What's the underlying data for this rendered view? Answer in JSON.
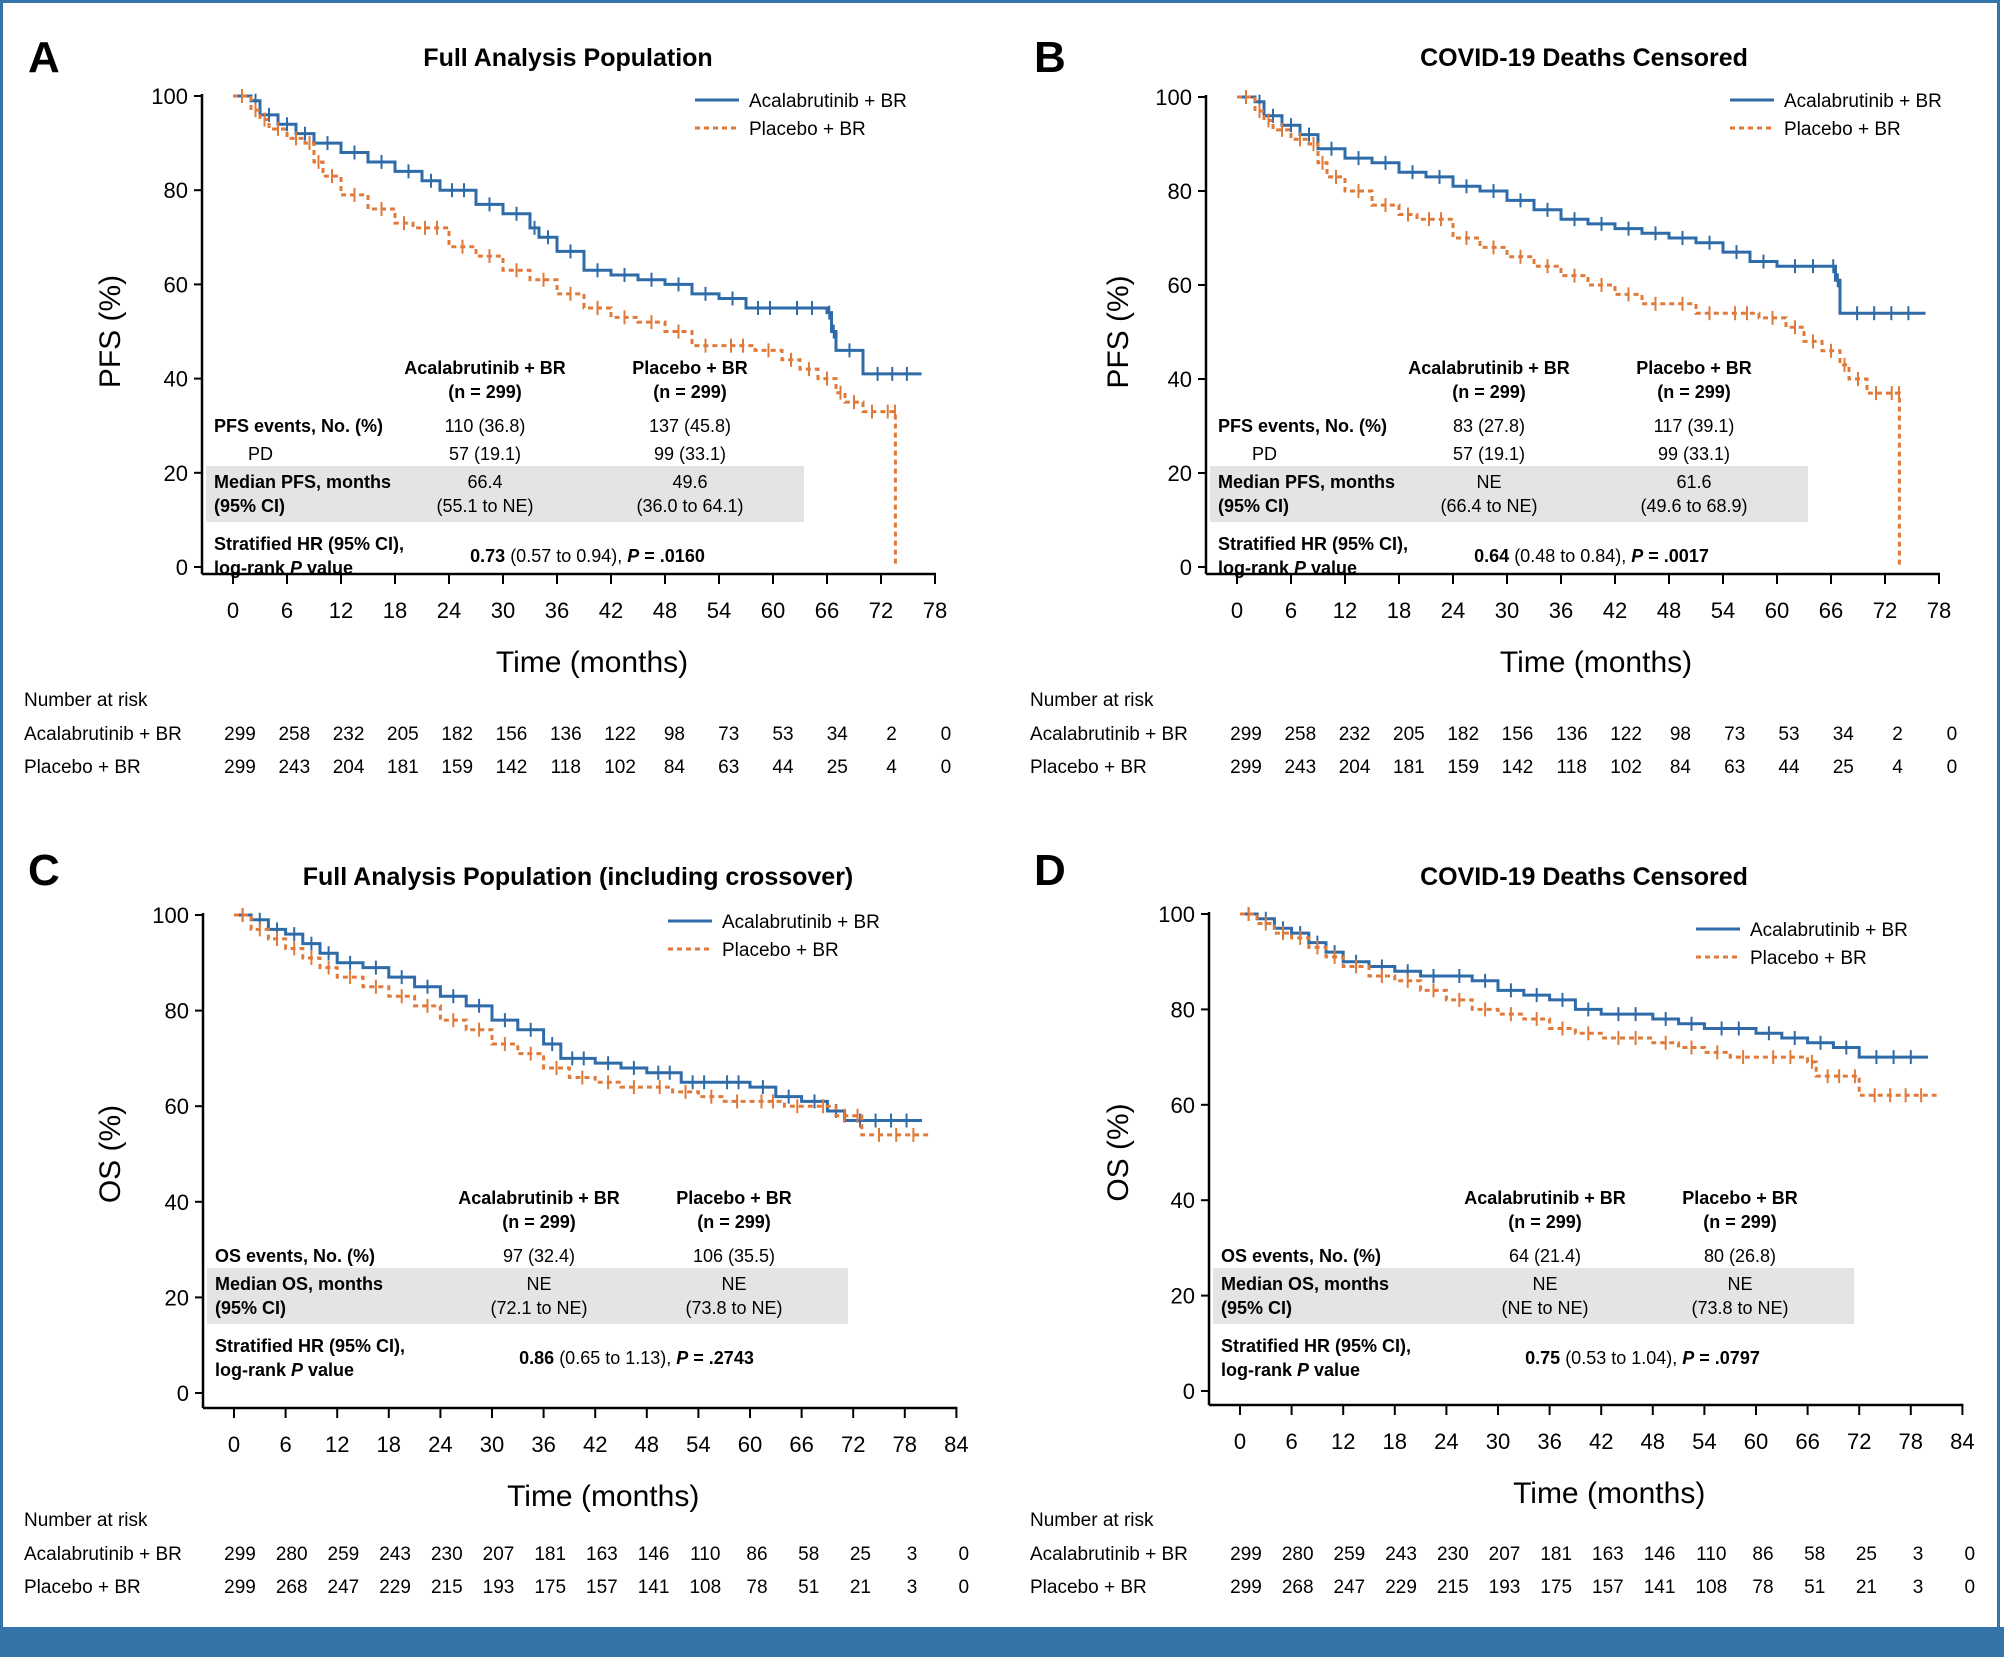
{
  "colors": {
    "acalabrutinib": "#2E6BA8",
    "placebo": "#E07A3A",
    "table_shade": "#E4E4E4",
    "banner": "#3574A9"
  },
  "chart_data": [
    {
      "panel": "A",
      "type": "line",
      "title": "Full Analysis Population",
      "xlabel": "Time (months)",
      "ylabel": "PFS (%)",
      "xlim": [
        0,
        78
      ],
      "ylim": [
        0,
        100
      ],
      "xticks": [
        0,
        6,
        12,
        18,
        24,
        30,
        36,
        42,
        48,
        54,
        60,
        66,
        72,
        78
      ],
      "yticks": [
        0,
        20,
        40,
        60,
        80,
        100
      ],
      "legend": "top-right",
      "series": [
        {
          "name": "Acalabrutinib + BR",
          "style": "solid",
          "x": [
            0,
            2,
            3,
            5,
            7,
            9,
            12,
            15,
            18,
            21,
            23,
            27,
            30,
            33,
            34,
            36,
            39,
            42,
            45,
            48,
            51,
            54,
            57,
            61,
            66,
            66.5,
            67,
            70,
            76.5
          ],
          "y": [
            100,
            99,
            96,
            94,
            92,
            90,
            88,
            86,
            84,
            82,
            80,
            77,
            75,
            72,
            70,
            67,
            63,
            62,
            61,
            60,
            58,
            57,
            55,
            55,
            54,
            50,
            46,
            41,
            41
          ]
        },
        {
          "name": "Placebo + BR",
          "style": "dashed",
          "x": [
            0,
            2,
            3,
            4,
            6,
            8,
            9,
            10,
            12,
            15,
            18,
            20,
            24,
            27,
            30,
            33,
            36,
            39,
            42,
            45,
            48,
            51,
            54,
            58,
            61,
            63,
            65,
            67,
            68,
            70,
            72,
            73.5,
            73.6
          ],
          "y": [
            100,
            97,
            95,
            93,
            91,
            90,
            86,
            83,
            79,
            76,
            73,
            72,
            68,
            66,
            63,
            61,
            58,
            55,
            53,
            52,
            50,
            47,
            47,
            46,
            44,
            42,
            40,
            37,
            35,
            33,
            33,
            33,
            0
          ]
        }
      ],
      "number_at_risk": {
        "label": "Number at risk",
        "rows": [
          {
            "name": "Acalabrutinib + BR",
            "values": [
              299,
              258,
              232,
              205,
              182,
              156,
              136,
              122,
              98,
              73,
              53,
              34,
              2,
              0
            ]
          },
          {
            "name": "Placebo + BR",
            "values": [
              299,
              243,
              204,
              181,
              159,
              142,
              118,
              102,
              84,
              63,
              44,
              25,
              4,
              0
            ]
          }
        ]
      },
      "summary_table": {
        "headers": [
          "Acalabrutinib + BR",
          "Placebo + BR"
        ],
        "subheaders": [
          "(n = 299)",
          "(n = 299)"
        ],
        "rows": [
          {
            "label": "PFS events, No. (%)",
            "bold": true,
            "shaded": false,
            "values": [
              "110 (36.8)",
              "137 (45.8)"
            ]
          },
          {
            "label": "PD",
            "bold": false,
            "indent": true,
            "shaded": false,
            "values": [
              "57 (19.1)",
              "99 (33.1)"
            ]
          },
          {
            "label": "Median PFS, months",
            "label2": "(95% CI)",
            "bold": true,
            "shaded": true,
            "values": [
              "66.4",
              "49.6"
            ],
            "values2": [
              "(55.1 to NE)",
              "(36.0 to 64.1)"
            ]
          }
        ],
        "hr_label": "Stratified HR (95% CI),",
        "hr_label2_pre": "log-rank ",
        "hr_label2_italic": "P",
        "hr_label2_post": " value",
        "hr_value_bold": "0.73",
        "hr_value_ci": " (0.57 to 0.94), ",
        "hr_p_label": "P",
        "hr_p_value": " = .0160"
      }
    },
    {
      "panel": "B",
      "type": "line",
      "title": "COVID-19 Deaths Censored",
      "xlabel": "Time (months)",
      "ylabel": "PFS (%)",
      "xlim": [
        0,
        78
      ],
      "ylim": [
        0,
        100
      ],
      "xticks": [
        0,
        6,
        12,
        18,
        24,
        30,
        36,
        42,
        48,
        54,
        60,
        66,
        72,
        78
      ],
      "yticks": [
        0,
        20,
        40,
        60,
        80,
        100
      ],
      "legend": "top-right",
      "series": [
        {
          "name": "Acalabrutinib + BR",
          "style": "solid",
          "x": [
            0,
            2,
            3,
            5,
            7,
            9,
            12,
            15,
            18,
            21,
            24,
            27,
            30,
            33,
            36,
            39,
            42,
            45,
            48,
            51,
            54,
            57,
            60,
            66,
            66.5,
            67,
            76.5
          ],
          "y": [
            100,
            99,
            96,
            94,
            92,
            89,
            87,
            86,
            84,
            83,
            81,
            80,
            78,
            76,
            74,
            73,
            72,
            71,
            70,
            69,
            67,
            65,
            64,
            64,
            61,
            54,
            54
          ]
        },
        {
          "name": "Placebo + BR",
          "style": "dashed",
          "x": [
            0,
            2,
            3,
            4,
            6,
            8,
            9,
            10,
            12,
            15,
            18,
            20,
            24,
            27,
            30,
            33,
            36,
            39,
            42,
            45,
            48,
            51,
            54,
            58,
            61,
            63,
            65,
            67,
            68,
            70,
            72,
            73.5,
            73.6
          ],
          "y": [
            100,
            97,
            95,
            93,
            91,
            90,
            86,
            83,
            80,
            77,
            75,
            74,
            70,
            68,
            66,
            64,
            62,
            60,
            58,
            56,
            56,
            54,
            54,
            53,
            51,
            48,
            46,
            43,
            40,
            37,
            37,
            37,
            0
          ]
        }
      ],
      "number_at_risk": {
        "label": "Number at risk",
        "rows": [
          {
            "name": "Acalabrutinib + BR",
            "values": [
              299,
              258,
              232,
              205,
              182,
              156,
              136,
              122,
              98,
              73,
              53,
              34,
              2,
              0
            ]
          },
          {
            "name": "Placebo + BR",
            "values": [
              299,
              243,
              204,
              181,
              159,
              142,
              118,
              102,
              84,
              63,
              44,
              25,
              4,
              0
            ]
          }
        ]
      },
      "summary_table": {
        "headers": [
          "Acalabrutinib + BR",
          "Placebo + BR"
        ],
        "subheaders": [
          "(n = 299)",
          "(n = 299)"
        ],
        "rows": [
          {
            "label": "PFS events, No. (%)",
            "bold": true,
            "shaded": false,
            "values": [
              "83 (27.8)",
              "117 (39.1)"
            ]
          },
          {
            "label": "PD",
            "bold": false,
            "indent": true,
            "shaded": false,
            "values": [
              "57 (19.1)",
              "99 (33.1)"
            ]
          },
          {
            "label": "Median PFS, months",
            "label2": "(95% CI)",
            "bold": true,
            "shaded": true,
            "values": [
              "NE",
              "61.6"
            ],
            "values2": [
              "(66.4 to NE)",
              "(49.6 to 68.9)"
            ]
          }
        ],
        "hr_label": "Stratified HR (95% CI),",
        "hr_label2_pre": "log-rank ",
        "hr_label2_italic": "P",
        "hr_label2_post": " value",
        "hr_value_bold": "0.64",
        "hr_value_ci": " (0.48 to 0.84), ",
        "hr_p_label": "P",
        "hr_p_value": " = .0017"
      }
    },
    {
      "panel": "C",
      "type": "line",
      "title": "Full Analysis Population (including crossover)",
      "xlabel": "Time (months)",
      "ylabel": "OS (%)",
      "xlim": [
        0,
        84
      ],
      "ylim": [
        0,
        100
      ],
      "xticks": [
        0,
        6,
        12,
        18,
        24,
        30,
        36,
        42,
        48,
        54,
        60,
        66,
        72,
        78,
        84
      ],
      "yticks": [
        0,
        20,
        40,
        60,
        80,
        100
      ],
      "legend": "top-right",
      "series": [
        {
          "name": "Acalabrutinib + BR",
          "style": "solid",
          "x": [
            0,
            2,
            4,
            6,
            8,
            10,
            12,
            15,
            18,
            21,
            24,
            27,
            30,
            33,
            36,
            38,
            42,
            45,
            48,
            52,
            56,
            60,
            63,
            66,
            69,
            71,
            80
          ],
          "y": [
            100,
            99,
            97,
            96,
            94,
            92,
            90,
            89,
            87,
            85,
            83,
            81,
            78,
            76,
            73,
            70,
            69,
            68,
            67,
            65,
            65,
            64,
            62,
            61,
            59,
            57,
            57
          ]
        },
        {
          "name": "Placebo + BR",
          "style": "dashed",
          "x": [
            0,
            2,
            4,
            6,
            8,
            10,
            12,
            15,
            18,
            21,
            24,
            27,
            30,
            33,
            36,
            39,
            42,
            45,
            48,
            51,
            54,
            57,
            60,
            64,
            67,
            70,
            72,
            73,
            81
          ],
          "y": [
            100,
            97,
            95,
            93,
            91,
            89,
            87,
            85,
            83,
            81,
            78,
            76,
            73,
            71,
            68,
            66,
            65,
            64,
            64,
            63,
            62,
            61,
            61,
            60,
            60,
            58,
            58,
            54,
            54
          ]
        }
      ],
      "number_at_risk": {
        "label": "Number at risk",
        "rows": [
          {
            "name": "Acalabrutinib + BR",
            "values": [
              299,
              280,
              259,
              243,
              230,
              207,
              181,
              163,
              146,
              110,
              86,
              58,
              25,
              3,
              0
            ]
          },
          {
            "name": "Placebo + BR",
            "values": [
              299,
              268,
              247,
              229,
              215,
              193,
              175,
              157,
              141,
              108,
              78,
              51,
              21,
              3,
              0
            ]
          }
        ]
      },
      "summary_table": {
        "headers": [
          "Acalabrutinib + BR",
          "Placebo + BR"
        ],
        "subheaders": [
          "(n = 299)",
          "(n = 299)"
        ],
        "rows": [
          {
            "label": "OS events, No. (%)",
            "bold": true,
            "shaded": false,
            "values": [
              "97 (32.4)",
              "106 (35.5)"
            ]
          },
          {
            "label": "Median OS, months",
            "label2": "(95% CI)",
            "bold": true,
            "shaded": true,
            "values": [
              "NE",
              "NE"
            ],
            "values2": [
              "(72.1 to NE)",
              "(73.8 to NE)"
            ]
          }
        ],
        "hr_label": "Stratified HR (95% CI),",
        "hr_label2_pre": "log-rank ",
        "hr_label2_italic": "P",
        "hr_label2_post": " value",
        "hr_value_bold": "0.86",
        "hr_value_ci": " (0.65 to 1.13), ",
        "hr_p_label": "P",
        "hr_p_value": " = .2743"
      }
    },
    {
      "panel": "D",
      "type": "line",
      "title": "COVID-19 Deaths Censored",
      "xlabel": "Time (months)",
      "ylabel": "OS (%)",
      "xlim": [
        0,
        84
      ],
      "ylim": [
        0,
        100
      ],
      "xticks": [
        0,
        6,
        12,
        18,
        24,
        30,
        36,
        42,
        48,
        54,
        60,
        66,
        72,
        78,
        84
      ],
      "yticks": [
        0,
        20,
        40,
        60,
        80,
        100
      ],
      "legend": "top-right",
      "series": [
        {
          "name": "Acalabrutinib + BR",
          "style": "solid",
          "x": [
            0,
            2,
            4,
            6,
            8,
            10,
            12,
            15,
            18,
            21,
            24,
            27,
            30,
            33,
            36,
            39,
            42,
            48,
            51,
            54,
            60,
            63,
            66,
            69,
            72,
            80
          ],
          "y": [
            100,
            99,
            97,
            96,
            94,
            92,
            90,
            89,
            88,
            87,
            87,
            86,
            84,
            83,
            82,
            80,
            79,
            78,
            77,
            76,
            75,
            74,
            73,
            72,
            70,
            70
          ]
        },
        {
          "name": "Placebo + BR",
          "style": "dashed",
          "x": [
            0,
            2,
            4,
            6,
            8,
            10,
            12,
            15,
            18,
            21,
            24,
            27,
            30,
            33,
            36,
            39,
            42,
            48,
            51,
            54,
            57,
            60,
            66,
            67,
            71,
            72,
            81
          ],
          "y": [
            100,
            98,
            96,
            95,
            93,
            91,
            89,
            87,
            86,
            84,
            82,
            80,
            79,
            78,
            76,
            75,
            74,
            73,
            72,
            71,
            70,
            70,
            69,
            66,
            66,
            62,
            62
          ]
        }
      ],
      "number_at_risk": {
        "label": "Number at risk",
        "rows": [
          {
            "name": "Acalabrutinib + BR",
            "values": [
              299,
              280,
              259,
              243,
              230,
              207,
              181,
              163,
              146,
              110,
              86,
              58,
              25,
              3,
              0
            ]
          },
          {
            "name": "Placebo + BR",
            "values": [
              299,
              268,
              247,
              229,
              215,
              193,
              175,
              157,
              141,
              108,
              78,
              51,
              21,
              3,
              0
            ]
          }
        ]
      },
      "summary_table": {
        "headers": [
          "Acalabrutinib + BR",
          "Placebo + BR"
        ],
        "subheaders": [
          "(n = 299)",
          "(n = 299)"
        ],
        "rows": [
          {
            "label": "OS events, No. (%)",
            "bold": true,
            "shaded": false,
            "values": [
              "64 (21.4)",
              "80 (26.8)"
            ]
          },
          {
            "label": "Median OS, months",
            "label2": "(95% CI)",
            "bold": true,
            "shaded": true,
            "values": [
              "NE",
              "NE"
            ],
            "values2": [
              "(NE to NE)",
              "(73.8 to NE)"
            ]
          }
        ],
        "hr_label": "Stratified HR (95% CI),",
        "hr_label2_pre": "log-rank ",
        "hr_label2_italic": "P",
        "hr_label2_post": " value",
        "hr_value_bold": "0.75",
        "hr_value_ci": " (0.53 to 1.04), ",
        "hr_p_label": "P",
        "hr_p_value": " = .0797"
      }
    }
  ]
}
